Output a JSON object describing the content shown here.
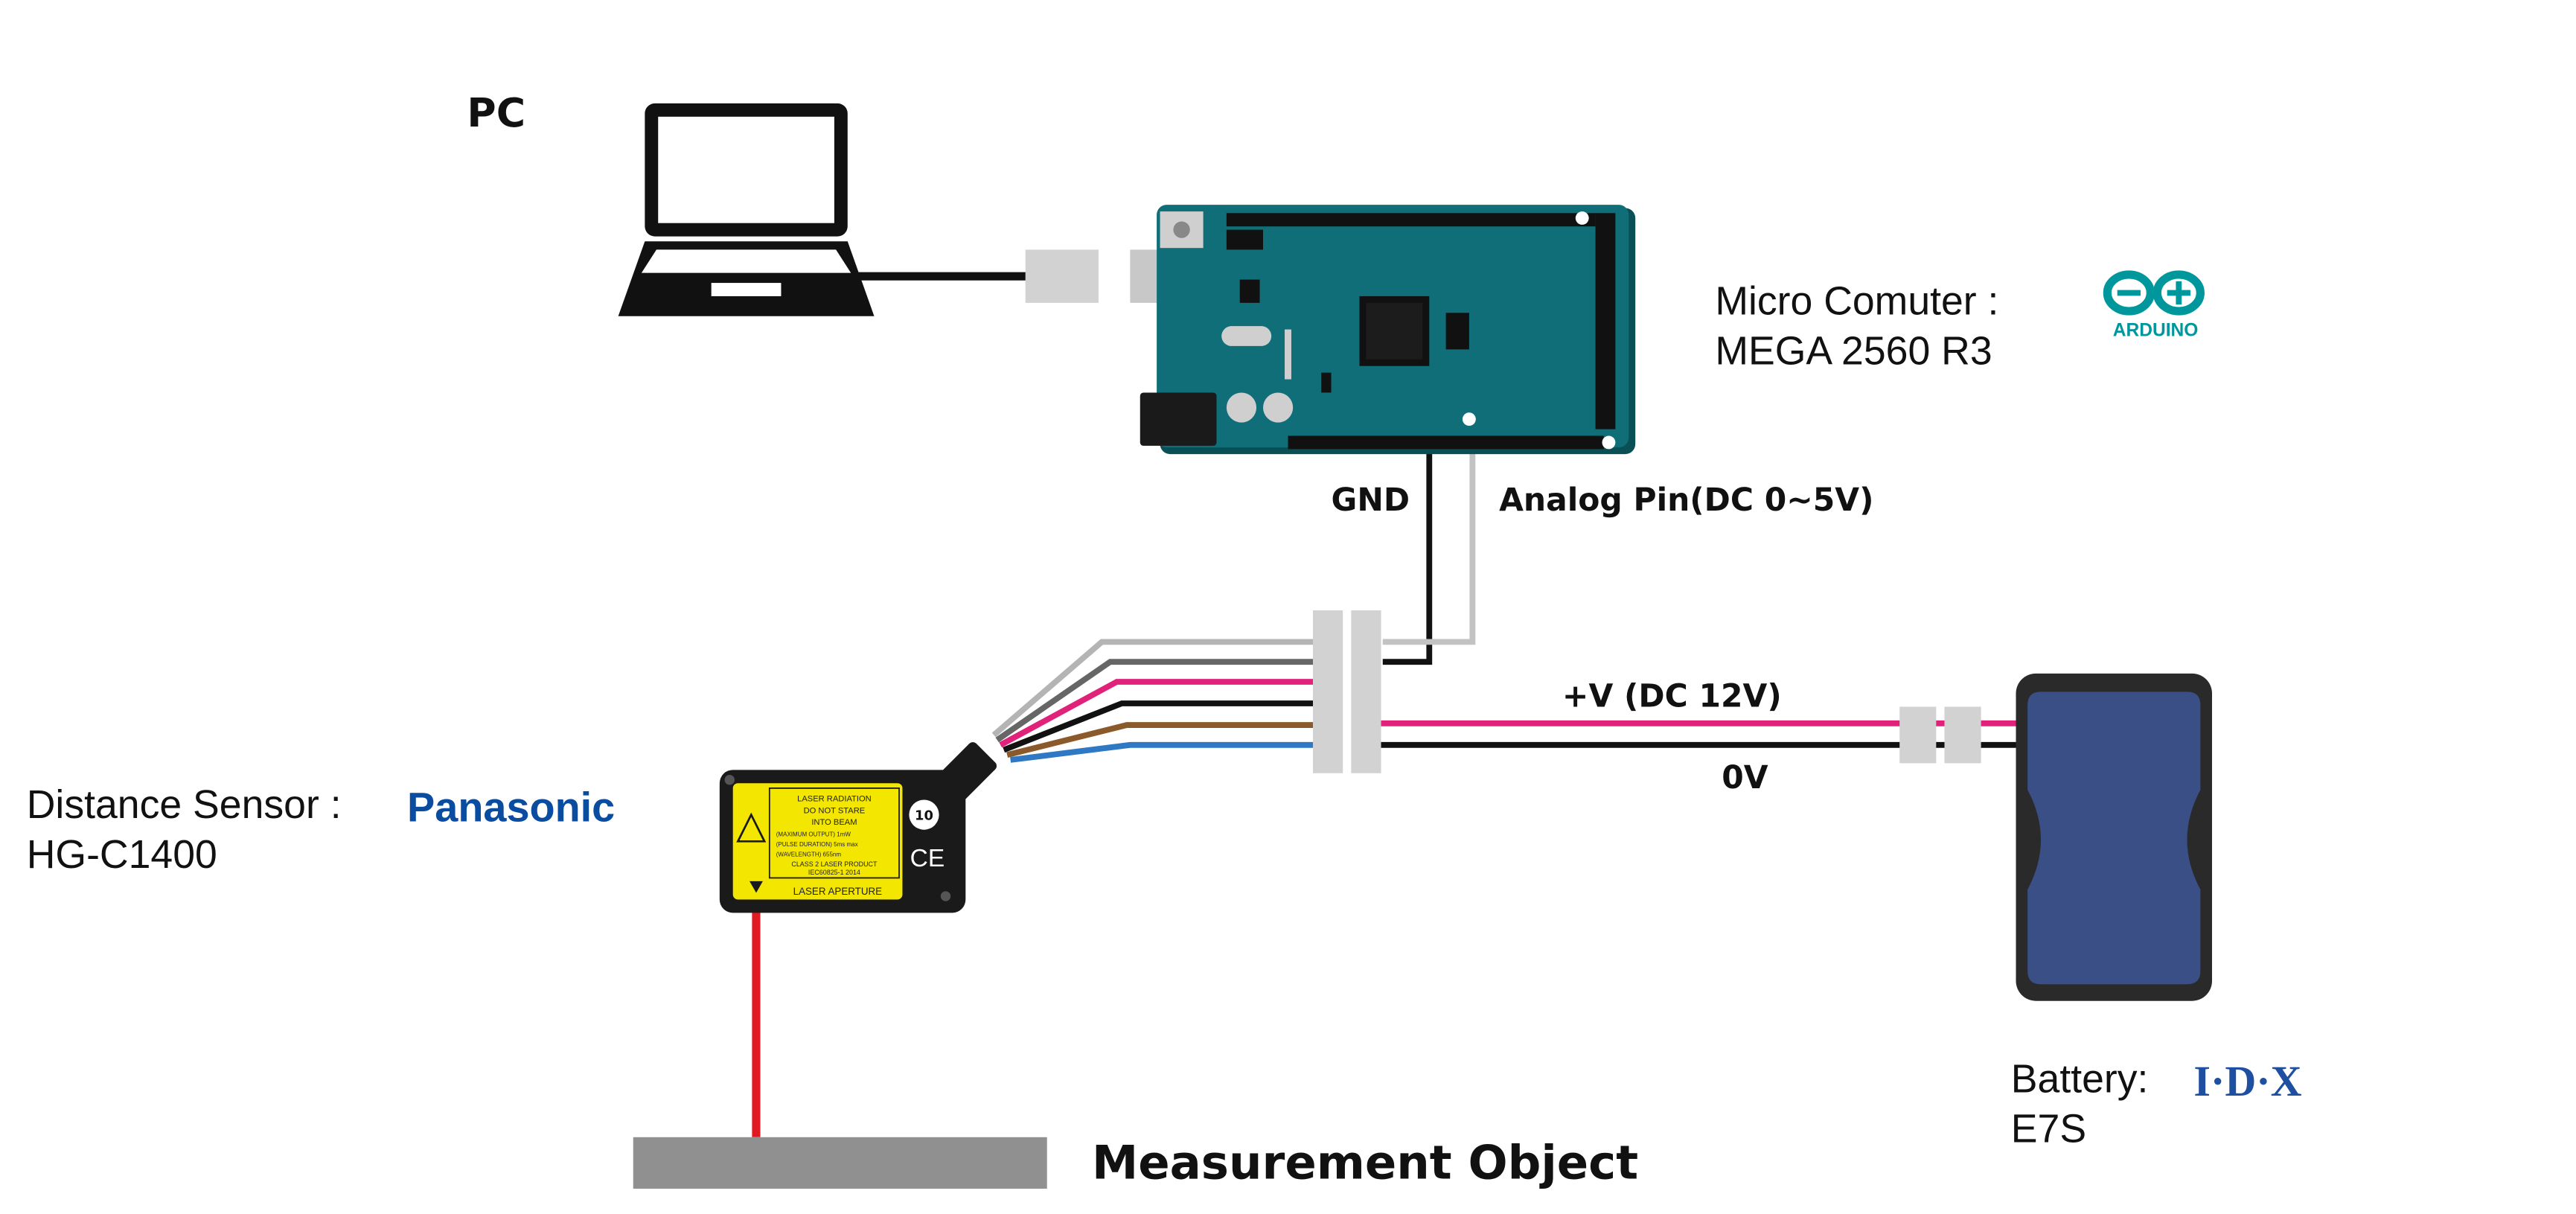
{
  "labels": {
    "pc": "PC",
    "micro_computer_line1": "Micro  Comuter :",
    "micro_computer_line2": "MEGA 2560 R3",
    "gnd": "GND",
    "analog_pin": "Analog Pin(DC 0~5V)",
    "plus_v": "+V (DC 12V)",
    "zero_v": "0V",
    "distance_sensor_line1": "Distance Sensor :",
    "distance_sensor_line2": "HG-C1400",
    "battery_line1": "Battery:",
    "battery_line2": "E7S",
    "measurement_object": "Measurement  Object"
  },
  "logos": {
    "arduino": "ARDUINO",
    "panasonic": "Panasonic",
    "idx": "I·D·X"
  },
  "sensor_label": {
    "line1": "LASER RADIATION",
    "line2": "DO NOT STARE",
    "line3": "INTO BEAM",
    "line4": "(MAXIMUM OUTPUT)  1mW",
    "line5": "(PULSE DURATION)  5ms max",
    "line6": "(WAVELENGTH)  655nm",
    "line7": "CLASS 2 LASER PRODUCT",
    "line8": "IEC60825-1 2014",
    "aperture": "LASER APERTURE",
    "ce": "CE",
    "badge": "10"
  },
  "colors": {
    "arduino_board": "#0f6e78",
    "arduino_logo": "#00979c",
    "panasonic_logo": "#0a4ca0",
    "idx_logo": "#1f4fa0",
    "battery_body": "#3a4f85",
    "sensor_yellow": "#f3e600",
    "laser": "#e01a22",
    "wire_pink": "#e0227a",
    "wire_brown": "#8a5a2b",
    "wire_blue": "#2f78c4",
    "wire_gray": "#b4b4b4",
    "connector_gray": "#d2d2d2",
    "object_gray": "#909090"
  }
}
